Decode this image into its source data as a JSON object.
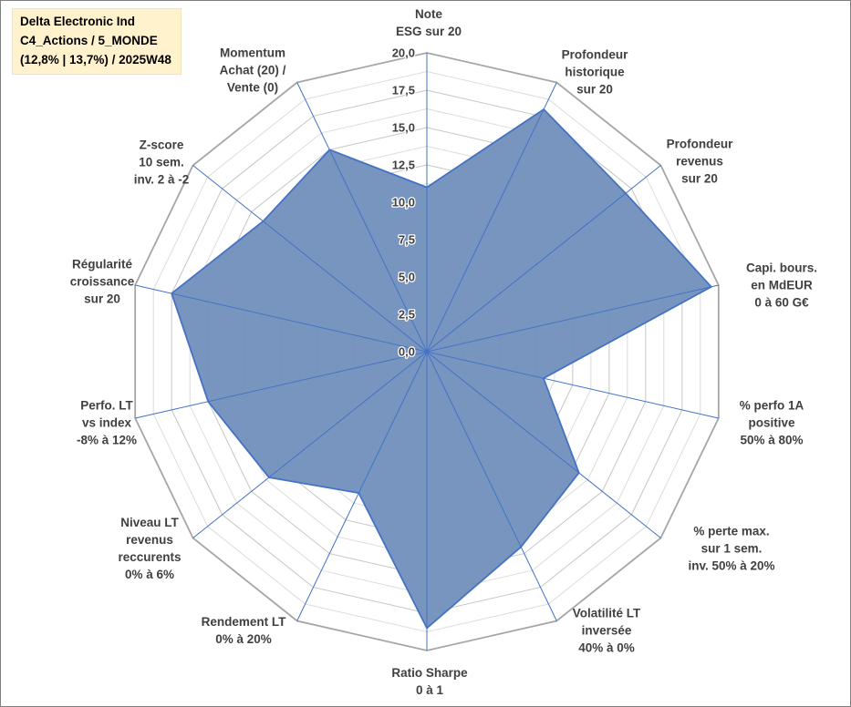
{
  "title_box": {
    "line1": "Delta Electronic Ind",
    "line2": "C4_Actions / 5_MONDE",
    "line3": "(12,8% | 13,7%) / 2025W48",
    "bg_color": "#FFF2CC",
    "text_color": "#A67C00"
  },
  "chart_data": {
    "type": "radar",
    "rmin": 0,
    "rmax": 20,
    "ring_step": 1.25,
    "label_step": 2.5,
    "tick_labels": [
      "0,0",
      "2,5",
      "5,0",
      "7,5",
      "10,0",
      "12,5",
      "15,0",
      "17,5",
      "20,0"
    ],
    "axes": [
      {
        "label": "Note ESG sur 20",
        "label_lines": [
          "Note",
          "ESG sur 20"
        ],
        "value": 11
      },
      {
        "label": "Profondeur historique sur 20",
        "label_lines": [
          "Profondeur",
          "historique",
          "sur 20"
        ],
        "value": 18
      },
      {
        "label": "Profondeur revenus sur 20",
        "label_lines": [
          "Profondeur",
          "revenus",
          "sur 20"
        ],
        "value": 17
      },
      {
        "label": "Capi. bours. en MdEUR 0 à 60 G€",
        "label_lines": [
          "Capi. bours.",
          "en MdEUR",
          "0 à 60 G€"
        ],
        "value": 19.5
      },
      {
        "label": "% perfo 1A positive 50% à 80%",
        "label_lines": [
          "% perfo 1A",
          "positive",
          "50% à 80%"
        ],
        "value": 8
      },
      {
        "label": "% perte max. sur 1 sem. inv. 50% à 20%",
        "label_lines": [
          "% perte max.",
          "sur 1 sem.",
          "inv. 50% à 20%"
        ],
        "value": 13
      },
      {
        "label": "Volatilité LT inversée 40% à 0%",
        "label_lines": [
          "Volatilité LT",
          "inversée",
          "40% à 0%"
        ],
        "value": 14.5
      },
      {
        "label": "Ratio Sharpe 0 à 1",
        "label_lines": [
          "Ratio Sharpe",
          "0 à 1"
        ],
        "value": 18.5
      },
      {
        "label": "Rendement LT 0% à 20%",
        "label_lines": [
          "Rendement LT",
          "0% à 20%"
        ],
        "value": 10.5
      },
      {
        "label": "Niveau LT revenus reccurents 0% à 6%",
        "label_lines": [
          "Niveau LT",
          "revenus",
          "reccurents",
          "0% à 6%"
        ],
        "value": 13.5
      },
      {
        "label": "Perfo. LT vs index -8% à 12%",
        "label_lines": [
          "Perfo. LT",
          "vs index",
          "-8% à 12%"
        ],
        "value": 15
      },
      {
        "label": "Régularité croissance sur 20",
        "label_lines": [
          "Régularité",
          "croissance",
          "sur 20"
        ],
        "value": 17.5
      },
      {
        "label": "Z-score 10 sem. inv. 2 à -2",
        "label_lines": [
          "Z-score",
          "10 sem.",
          "inv. 2 à -2"
        ],
        "value": 14
      },
      {
        "label": "Momentum Achat (20) / Vente (0)",
        "label_lines": [
          "Momentum",
          "Achat (20) /",
          "Vente (0)"
        ],
        "value": 15
      }
    ],
    "colors": {
      "fill": "#7191BC",
      "fill_opacity": 0.96,
      "stroke": "#4472C4",
      "spoke": "#4472C4",
      "ring_minor": "#DCDCDC",
      "ring_major": "#C6C6C6",
      "outer_ring": "#A6A6A6",
      "label_color": "#404040",
      "tick_color": "#404040"
    }
  }
}
